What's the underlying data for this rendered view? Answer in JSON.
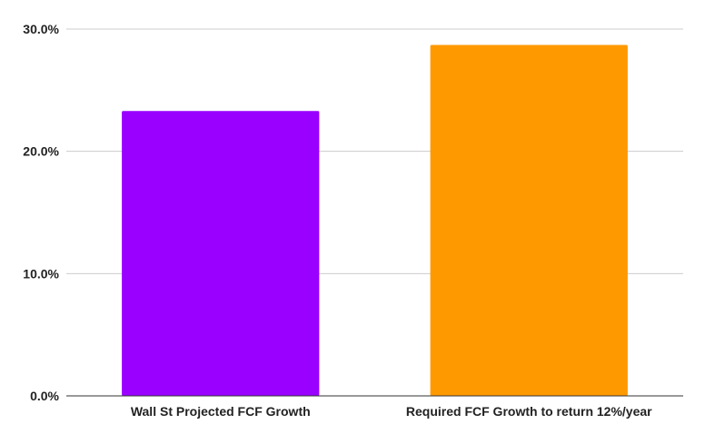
{
  "chart_data": {
    "type": "bar",
    "categories": [
      "Wall St Projected FCF Growth",
      "Required FCF Growth to return 12%/year"
    ],
    "values": [
      23.3,
      28.7
    ],
    "colors": [
      "#9900ff",
      "#ff9900"
    ],
    "y_ticks": [
      0,
      10,
      20,
      30
    ],
    "y_tick_labels": [
      "0.0%",
      "10.0%",
      "20.0%",
      "30.0%"
    ],
    "ylim": [
      0,
      30
    ],
    "grid": true,
    "gridline_color": "#cccccc",
    "axis_color": "#333333",
    "title": "",
    "xlabel": "",
    "ylabel": ""
  }
}
